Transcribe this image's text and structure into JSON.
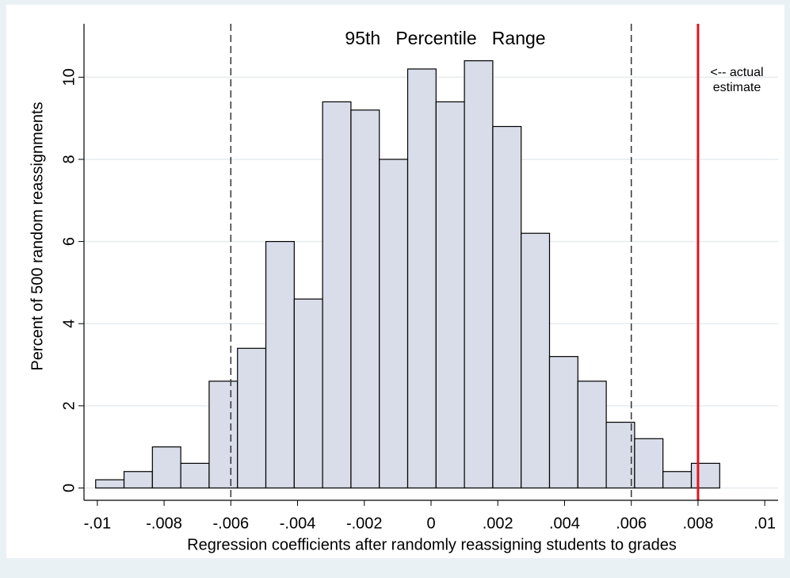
{
  "chart_data": {
    "type": "histogram",
    "x_label": "Regression coefficients after randomly reassigning students to grades",
    "y_label": "Percent of 500 random reassignments",
    "bins": [
      -0.01005,
      -0.0092,
      -0.00835,
      -0.0075,
      -0.00665,
      -0.0058,
      -0.00495,
      -0.0041,
      -0.00325,
      -0.0024,
      -0.00155,
      -0.0007,
      0.00015,
      0.001,
      0.00185,
      0.0027,
      0.00355,
      0.0044,
      0.00525,
      0.0061,
      0.00695,
      0.0078,
      0.00865
    ],
    "values": [
      0.2,
      0.4,
      1.0,
      0.6,
      2.6,
      3.4,
      6.0,
      4.6,
      9.4,
      9.2,
      8.0,
      10.2,
      9.4,
      10.4,
      8.8,
      6.2,
      3.2,
      2.6,
      1.6,
      1.2,
      0.4,
      0.6
    ],
    "color": "#d8dde9",
    "xlim": [
      -0.0104,
      0.0104
    ],
    "ylim": [
      -0.3,
      11.3
    ],
    "xticks": [
      {
        "value": -0.01,
        "label": "-.01"
      },
      {
        "value": -0.008,
        "label": "-.008"
      },
      {
        "value": -0.006,
        "label": "-.006"
      },
      {
        "value": -0.004,
        "label": "-.004"
      },
      {
        "value": -0.002,
        "label": "-.002"
      },
      0,
      {
        "value": 0.002,
        "label": ".002"
      },
      {
        "value": 0.004,
        "label": ".004"
      },
      {
        "value": 0.006,
        "label": ".006"
      },
      {
        "value": 0.008,
        "label": ".008"
      },
      {
        "value": 0.01,
        "label": ".01"
      }
    ],
    "yticks": [
      0,
      2,
      4,
      6,
      8,
      10
    ],
    "grid": true,
    "vlines": [
      {
        "x": -0.006,
        "color": "#333333",
        "dashed": true
      },
      {
        "x": 0.006,
        "color": "#333333",
        "dashed": true
      },
      {
        "x": 0.008,
        "color": "#e0161d",
        "dashed": false
      }
    ],
    "annotations": {
      "range": "95th   Percentile   Range",
      "estimate": [
        "<-- actual",
        "estimate"
      ]
    }
  }
}
